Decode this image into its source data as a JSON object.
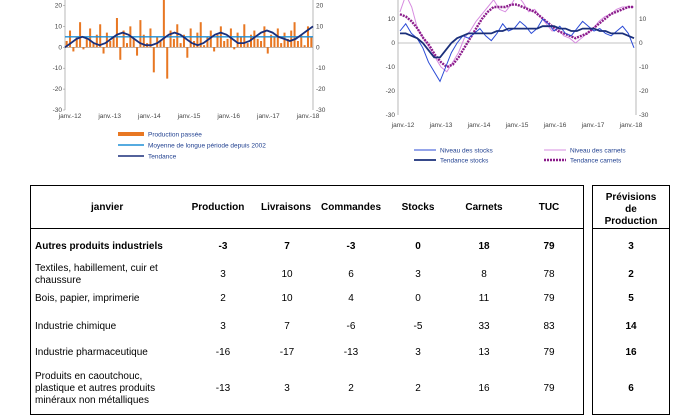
{
  "chart_left": {
    "y_ticks_left": [
      "20",
      "10",
      "0",
      "-10",
      "-20",
      "-30"
    ],
    "y_ticks_right": [
      "20",
      "10",
      "0",
      "-10",
      "-20",
      "-30"
    ],
    "x_ticks": [
      "janv.-12",
      "janv.-13",
      "janv.-14",
      "janv.-15",
      "janv.-16",
      "janv.-17",
      "janv.-18"
    ],
    "legend": [
      "Production passée",
      "Moyenne de longue période depuis 2002",
      "Tendance"
    ],
    "colors": {
      "bars": "#e87722",
      "average": "#1f8fd6",
      "trend": "#1a2f7a"
    }
  },
  "chart_right": {
    "y_ticks_left": [
      "10",
      "0",
      "-10",
      "-20",
      "-30"
    ],
    "y_ticks_right": [
      "10",
      "0",
      "-10",
      "-20",
      "-30"
    ],
    "x_ticks": [
      "janv.-12",
      "janv.-13",
      "janv.-14",
      "janv.-15",
      "janv.-16",
      "janv.-17",
      "janv.-18"
    ],
    "legend": [
      "Niveau des stocks",
      "Tendance stocks",
      "Niveau des carnets",
      "Tendance carnets"
    ],
    "colors": {
      "stocks": "#2b4bd6",
      "stocks_trend": "#1a2f7a",
      "carnets": "#d78ce0",
      "carnets_trend": "#8b1c8b"
    }
  },
  "chart_data": [
    {
      "type": "bar",
      "ylim": [
        -30,
        25
      ],
      "series": [
        {
          "name": "Production passée",
          "values": [
            3,
            8,
            -2,
            5,
            12,
            -1,
            4,
            9,
            2,
            6,
            11,
            -3,
            7,
            3,
            5,
            14,
            -6,
            8,
            2,
            10,
            4,
            -4,
            13,
            6,
            2,
            9,
            -12,
            5,
            3,
            25,
            -15,
            8,
            4,
            11,
            2,
            6,
            -5,
            9,
            3,
            7,
            12,
            1,
            5,
            8,
            -2,
            6,
            10,
            3,
            4,
            9,
            -1,
            7,
            5,
            11,
            2,
            6,
            8,
            4,
            3,
            10,
            -3,
            6,
            5,
            9,
            2,
            7,
            4,
            8,
            12,
            3,
            6,
            1,
            10,
            5
          ]
        },
        {
          "name": "Moyenne de longue période depuis 2002",
          "values": [
            5,
            5
          ]
        },
        {
          "name": "Tendance",
          "values": [
            0,
            2,
            4,
            5,
            4,
            2,
            1,
            2,
            4,
            6,
            7,
            6,
            4,
            2,
            1,
            1,
            2,
            4,
            6,
            7,
            6,
            4,
            2,
            1,
            2,
            4,
            6,
            7,
            6,
            4,
            2,
            2,
            3,
            5,
            7,
            8,
            7,
            5,
            4,
            3,
            4,
            6,
            8,
            10
          ]
        }
      ]
    },
    {
      "type": "line",
      "ylim": [
        -30,
        20
      ],
      "series": [
        {
          "name": "Niveau des stocks",
          "values": [
            5,
            8,
            4,
            2,
            -2,
            -8,
            -12,
            -16,
            -10,
            -4,
            0,
            3,
            2,
            4,
            6,
            3,
            1,
            4,
            8,
            5,
            6,
            9,
            7,
            4,
            6,
            10,
            8,
            5,
            7,
            4,
            3,
            6,
            9,
            7,
            5,
            6,
            4,
            3,
            5,
            7,
            4,
            -2
          ]
        },
        {
          "name": "Tendance stocks",
          "values": [
            4,
            4,
            3,
            2,
            0,
            -3,
            -6,
            -6,
            -3,
            0,
            2,
            3,
            4,
            4,
            4,
            4,
            4,
            5,
            5,
            6,
            6,
            6,
            6,
            6,
            6,
            7,
            7,
            7,
            6,
            6,
            5,
            5,
            6,
            6,
            6,
            5,
            5,
            4,
            4,
            4,
            3,
            2
          ]
        },
        {
          "name": "Niveau des carnets",
          "values": [
            13,
            20,
            15,
            6,
            2,
            -2,
            -6,
            -10,
            -12,
            -8,
            -4,
            2,
            5,
            9,
            12,
            15,
            18,
            14,
            13,
            16,
            20,
            17,
            13,
            14,
            11,
            8,
            5,
            6,
            3,
            2,
            0,
            2,
            4,
            6,
            9,
            11,
            12,
            14,
            15,
            15,
            15
          ]
        },
        {
          "name": "Tendance carnets",
          "values": [
            12,
            11,
            9,
            6,
            2,
            -1,
            -5,
            -8,
            -10,
            -9,
            -6,
            -2,
            2,
            6,
            10,
            13,
            15,
            15,
            15,
            16,
            16,
            15,
            14,
            13,
            11,
            9,
            7,
            5,
            4,
            3,
            2,
            3,
            4,
            6,
            8,
            10,
            12,
            13,
            14,
            15,
            15
          ]
        }
      ]
    }
  ],
  "table": {
    "header": {
      "col0": "janvier",
      "cols": [
        "Production",
        "Livraisons",
        "Commandes",
        "Stocks",
        "Carnets",
        "TUC"
      ],
      "prev": [
        "Prévisions",
        "de",
        "Production"
      ]
    },
    "rows": [
      {
        "label": "Autres produits industriels",
        "bold": true,
        "values": [
          "-3",
          "7",
          "-3",
          "0",
          "18",
          "79"
        ],
        "prev": "3"
      },
      {
        "label": "Textiles, habillement, cuir et chaussure",
        "bold": false,
        "values": [
          "3",
          "10",
          "6",
          "3",
          "8",
          "78"
        ],
        "prev": "2"
      },
      {
        "label": "Bois, papier, imprimerie",
        "bold": false,
        "values": [
          "2",
          "10",
          "4",
          "0",
          "11",
          "79"
        ],
        "prev": "5"
      },
      {
        "label": "Industrie chimique",
        "bold": false,
        "values": [
          "3",
          "7",
          "-6",
          "-5",
          "33",
          "83"
        ],
        "prev": "14"
      },
      {
        "label": "Industrie pharmaceutique",
        "bold": false,
        "values": [
          "-16",
          "-17",
          "-13",
          "3",
          "13",
          "79"
        ],
        "prev": "16"
      },
      {
        "label": "Produits en caoutchouc, plastique et autres produits minéraux non métalliques",
        "bold": false,
        "values": [
          "-13",
          "3",
          "2",
          "2",
          "16",
          "79"
        ],
        "prev": "6"
      }
    ]
  }
}
